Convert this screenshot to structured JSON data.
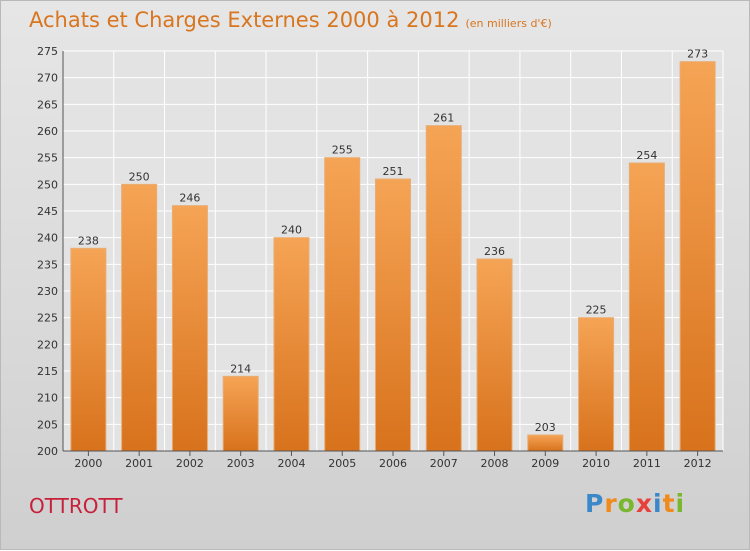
{
  "header": {
    "title": "Achats et Charges Externes 2000 à 2012",
    "subtitle": "(en milliers d'€)"
  },
  "footer": {
    "commune": "OTTROTT",
    "logo_text": "Proxiti",
    "logo_colors": [
      "#3a88c9",
      "#f08a1c",
      "#7ab72e",
      "#e8403a",
      "#3a88c9",
      "#f08a1c",
      "#7ab72e"
    ]
  },
  "colors": {
    "bar_light": "#f5a455",
    "bar_dark": "#d8721c",
    "title": "#d8751f",
    "commune": "#c8203a",
    "grid": "#ffffff"
  },
  "chart_data": {
    "type": "bar",
    "title": "Achats et Charges Externes 2000 à 2012",
    "subtitle": "(en milliers d'€)",
    "categories": [
      "2000",
      "2001",
      "2002",
      "2003",
      "2004",
      "2005",
      "2006",
      "2007",
      "2008",
      "2009",
      "2010",
      "2011",
      "2012"
    ],
    "values": [
      238,
      250,
      246,
      214,
      240,
      255,
      251,
      261,
      236,
      203,
      225,
      254,
      273
    ],
    "ylim": [
      200,
      275
    ],
    "ytick_step": 5,
    "xlabel": "",
    "ylabel": "",
    "grid": true,
    "legend": "none"
  }
}
